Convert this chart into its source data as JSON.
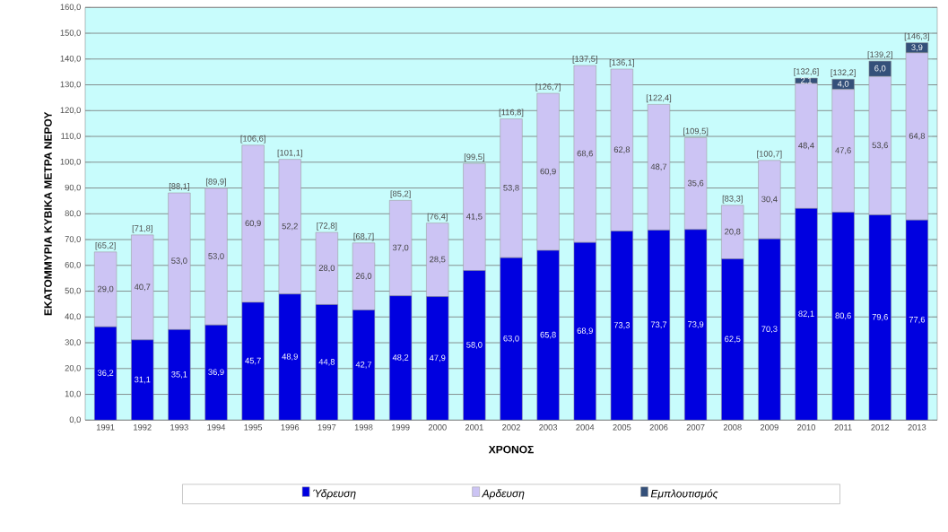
{
  "chart_data": {
    "type": "bar",
    "stacked": true,
    "xlabel": "ΧΡΟΝΟΣ",
    "ylabel": "ΕΚΑΤΟΜΜΥΡΙΑ ΚΥΒΙΚΑ ΜΕΤΡΑ ΝΕΡΟΥ",
    "categories": [
      "1991",
      "1992",
      "1993",
      "1994",
      "1995",
      "1996",
      "1997",
      "1998",
      "1999",
      "2000",
      "2001",
      "2002",
      "2003",
      "2004",
      "2005",
      "2006",
      "2007",
      "2008",
      "2009",
      "2010",
      "2011",
      "2012",
      "2013"
    ],
    "series": [
      {
        "name": "Ύδρευση",
        "color": "#0000e0",
        "values": [
          36.2,
          31.1,
          35.1,
          36.9,
          45.7,
          48.9,
          44.8,
          42.7,
          48.2,
          47.9,
          58.0,
          63.0,
          65.8,
          68.9,
          73.3,
          73.7,
          73.9,
          62.5,
          70.3,
          82.1,
          80.6,
          79.6,
          77.6
        ],
        "value_labels": [
          "36,2",
          "31,1",
          "35,1",
          "36,9",
          "45,7",
          "48,9",
          "44,8",
          "42,7",
          "48,2",
          "47,9",
          "58,0",
          "63,0",
          "65,8",
          "68,9",
          "73,3",
          "73,7",
          "73,9",
          "62,5",
          "70,3",
          "82,1",
          "80,6",
          "79,6",
          "77,6"
        ]
      },
      {
        "name": "Αρδευση",
        "color": "#ccc4f4",
        "values": [
          29.0,
          40.7,
          53.0,
          53.0,
          60.9,
          52.2,
          28.0,
          26.0,
          37.0,
          28.5,
          41.5,
          53.8,
          60.9,
          68.6,
          62.8,
          48.7,
          35.6,
          20.8,
          30.4,
          48.4,
          47.6,
          53.6,
          64.8
        ],
        "value_labels": [
          "29,0",
          "40,7",
          "53,0",
          "53,0",
          "60,9",
          "52,2",
          "28,0",
          "26,0",
          "37,0",
          "28,5",
          "41,5",
          "53,8",
          "60,9",
          "68,6",
          "62,8",
          "48,7",
          "35,6",
          "20,8",
          "30,4",
          "48,4",
          "47,6",
          "53,6",
          "64,8"
        ]
      },
      {
        "name": "Εμπλουτισμός",
        "color": "#34507a",
        "values": [
          null,
          null,
          null,
          null,
          null,
          null,
          null,
          null,
          null,
          null,
          null,
          null,
          null,
          null,
          null,
          null,
          null,
          null,
          null,
          2.1,
          4.0,
          6.0,
          3.9
        ],
        "value_labels": [
          null,
          null,
          null,
          null,
          null,
          null,
          null,
          null,
          null,
          null,
          null,
          null,
          null,
          null,
          null,
          null,
          null,
          null,
          null,
          "2,1",
          "4,0",
          "6,0",
          "3,9"
        ]
      }
    ],
    "totals": [
      "[65,2]",
      "[71,8]",
      "[88,1]",
      "[89,9]",
      "[106,6]",
      "[101,1]",
      "[72,8]",
      "[68,7]",
      "[85,2]",
      "[76,4]",
      "[99,5]",
      "[116,8]",
      "[126,7]",
      "[137,5]",
      "[136,1]",
      "[122,4]",
      "[109,5]",
      "[83,3]",
      "[100,7]",
      "[132,6]",
      "[132,2]",
      "[139,2]",
      "[146,3]"
    ],
    "ylim": [
      0,
      160
    ],
    "yticks": [
      {
        "value": 0,
        "label": "0,0"
      },
      {
        "value": 10,
        "label": "10,0"
      },
      {
        "value": 20,
        "label": "20,0"
      },
      {
        "value": 30,
        "label": "30,0"
      },
      {
        "value": 40,
        "label": "40,0"
      },
      {
        "value": 50,
        "label": "50,0"
      },
      {
        "value": 60,
        "label": "60,0"
      },
      {
        "value": 70,
        "label": "70,0"
      },
      {
        "value": 80,
        "label": "80,0"
      },
      {
        "value": 90,
        "label": "90,0"
      },
      {
        "value": 100,
        "label": "100,0"
      },
      {
        "value": 110,
        "label": "110,0"
      },
      {
        "value": 120,
        "label": "120,0"
      },
      {
        "value": 130,
        "label": "130,0"
      },
      {
        "value": 140,
        "label": "140,0"
      },
      {
        "value": 150,
        "label": "150,0"
      },
      {
        "value": 160,
        "label": "160,0"
      }
    ],
    "grid": "y",
    "legend": "bottom"
  }
}
